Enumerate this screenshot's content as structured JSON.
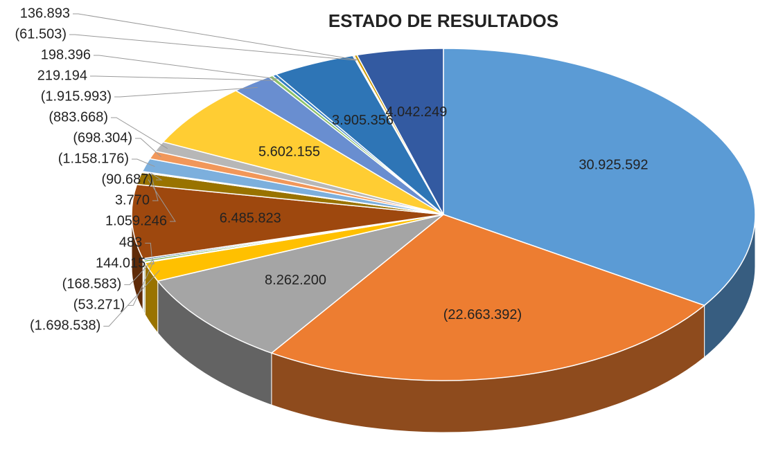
{
  "chart_data": {
    "type": "pie",
    "title": "ESTADO DE RESULTADOS",
    "values": [
      30925592,
      -22663392,
      8262200,
      -1698538,
      -53271,
      -168583,
      144015,
      483,
      6485823,
      1059246,
      3770,
      -90687,
      -1158176,
      -698304,
      -883668,
      5602155,
      -1915993,
      219194,
      198396,
      3905356,
      -61503,
      136893,
      4042249
    ],
    "value_labels": [
      "30.925.592",
      "(22.663.392)",
      "8.262.200",
      "(1.698.538)",
      "(53.271)",
      "(168.583)",
      "144.015",
      "483",
      "6.485.823",
      "1.059.246",
      "3.770",
      "(90.687)",
      "(1.158.176)",
      "(698.304)",
      "(883.668)",
      "5.602.155",
      "(1.915.993)",
      "219.194",
      "198.396",
      "3.905.356",
      "(61.503)",
      "136.893",
      "4.042.249"
    ],
    "colors": [
      "#5b9bd5",
      "#ed7d31",
      "#a5a5a5",
      "#ffc000",
      "#4472c4",
      "#70ad47",
      "#255e91",
      "#9e480e",
      "#9e480e",
      "#997300",
      "#264478",
      "#43682b",
      "#7cafdd",
      "#f1975a",
      "#b7b7b7",
      "#ffcd33",
      "#698ed0",
      "#8cc168",
      "#327dc2",
      "#2e75b6",
      "#d26012",
      "#cc9a00",
      "#335aa1"
    ]
  }
}
